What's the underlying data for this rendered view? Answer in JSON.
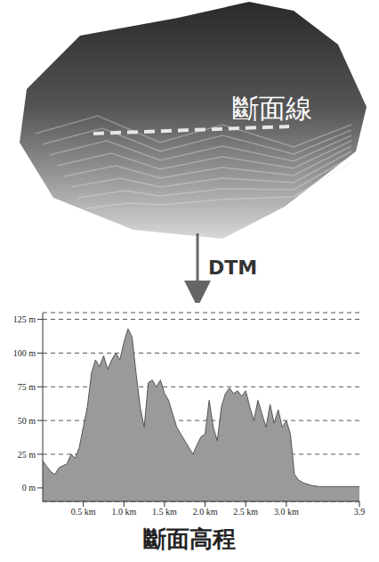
{
  "chart_data": {
    "type": "area",
    "title": "斷面高程",
    "annotations": [
      "斷面線",
      "DTM"
    ],
    "x": [
      0,
      0.05,
      0.1,
      0.15,
      0.2,
      0.3,
      0.35,
      0.4,
      0.45,
      0.5,
      0.55,
      0.6,
      0.65,
      0.7,
      0.75,
      0.8,
      0.85,
      0.9,
      0.95,
      1.0,
      1.05,
      1.1,
      1.15,
      1.2,
      1.25,
      1.3,
      1.35,
      1.4,
      1.45,
      1.5,
      1.55,
      1.6,
      1.65,
      1.7,
      1.75,
      1.8,
      1.85,
      1.9,
      1.95,
      2.0,
      2.05,
      2.1,
      2.15,
      2.2,
      2.25,
      2.3,
      2.35,
      2.4,
      2.45,
      2.5,
      2.55,
      2.6,
      2.65,
      2.7,
      2.75,
      2.8,
      2.85,
      2.9,
      2.95,
      3.0,
      3.05,
      3.1,
      3.15,
      3.2,
      3.3,
      3.4,
      3.6,
      3.9
    ],
    "values": [
      20,
      16,
      12,
      10,
      15,
      18,
      25,
      22,
      30,
      45,
      60,
      85,
      95,
      90,
      98,
      88,
      95,
      100,
      95,
      108,
      118,
      112,
      85,
      60,
      45,
      78,
      80,
      75,
      80,
      70,
      65,
      55,
      45,
      40,
      35,
      30,
      25,
      32,
      38,
      40,
      65,
      45,
      35,
      60,
      70,
      74,
      70,
      72,
      68,
      72,
      60,
      50,
      65,
      55,
      45,
      62,
      48,
      58,
      45,
      50,
      40,
      10,
      6,
      4,
      2,
      1,
      1,
      1
    ],
    "color": "#9a9a9a",
    "xlim": [
      0,
      3.9
    ],
    "xticks": [
      {
        "value": 0.5,
        "label": "0.5 km"
      },
      {
        "value": 1.0,
        "label": "1.0 km"
      },
      {
        "value": 1.5,
        "label": "1.5 km"
      },
      {
        "value": 2.0,
        "label": "2.0 km"
      },
      {
        "value": 2.5,
        "label": "2.5 km"
      },
      {
        "value": 3.0,
        "label": "3.0 km"
      },
      3.9
    ],
    "ylim": [
      -10,
      130
    ],
    "yticks": [
      {
        "value": 0,
        "label": "0 m"
      },
      {
        "value": 25,
        "label": "25 m"
      },
      {
        "value": 50,
        "label": "50 m"
      },
      {
        "value": 75,
        "label": "75 m"
      },
      {
        "value": 100,
        "label": "100 m"
      },
      {
        "value": 125,
        "label": "125 m"
      }
    ],
    "grid": true
  }
}
